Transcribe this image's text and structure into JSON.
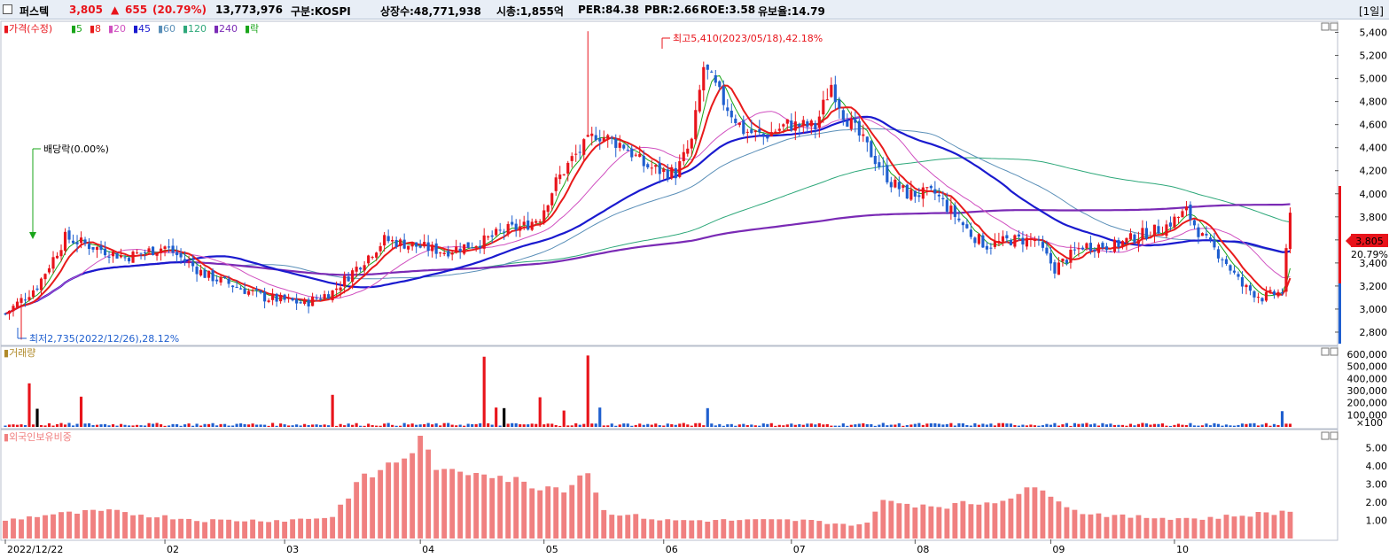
{
  "header": {
    "name": "퍼스텍",
    "price": "3,805",
    "change_arrow": "▲",
    "change": "655",
    "change_pct": "(20.79%)",
    "volume": "13,773,976",
    "market": "구분:KOSPI",
    "listed": "상장수:48,771,938",
    "mktcap": "시총:1,855억",
    "per": "PER:84.38",
    "pbr": "PBR:2.66",
    "roe": "ROE:3.58",
    "float": "유보율:14.79",
    "period": "[1일]"
  },
  "colors": {
    "up": "#e8141b",
    "down": "#1f5fcf",
    "ma5": "#1aa51a",
    "ma8": "#e81b1b",
    "ma20": "#d050c0",
    "ma45": "#1a1acf",
    "ma60": "#5a8fb8",
    "ma120": "#2ea87a",
    "ma240": "#7a2ab5",
    "foreign": "#f08080"
  },
  "price_panel": {
    "legend": [
      "가격(수정)",
      "5",
      "8",
      "20",
      "45",
      "60",
      "120",
      "240",
      "락"
    ],
    "annotations": {
      "high": "최고5,410(2023/05/18),42.18%",
      "low": "최저2,735(2022/12/26),28.12%",
      "dividend": "배당락(0.00%)"
    },
    "current_price_label": "3,805",
    "current_pct_label": "20.79%"
  },
  "volume_panel": {
    "legend": "거래량",
    "unit": "×100"
  },
  "foreign_panel": {
    "legend": "외국인보유비중"
  },
  "chart_data": [
    {
      "type": "candlestick",
      "title": "가격(수정)",
      "y_ticks": [
        "5,400",
        "5,200",
        "5,000",
        "4,800",
        "4,600",
        "4,400",
        "4,200",
        "4,000",
        "3,800",
        "3,600",
        "3,400",
        "3,200",
        "3,000",
        "2,800"
      ],
      "ylim": [
        2700,
        5450
      ],
      "x_ticks": [
        "2022/12/22",
        "02",
        "03",
        "04",
        "05",
        "06",
        "07",
        "08",
        "09",
        "10"
      ],
      "series": [
        {
          "name": "가격(수정)",
          "close_points": [
            [
              0,
              2960
            ],
            [
              8,
              3200
            ],
            [
              15,
              3620
            ],
            [
              30,
              3450
            ],
            [
              40,
              3540
            ],
            [
              50,
              3300
            ],
            [
              65,
              3100
            ],
            [
              75,
              3050
            ],
            [
              82,
              3150
            ],
            [
              95,
              3600
            ],
            [
              110,
              3500
            ],
            [
              120,
              3590
            ],
            [
              125,
              3680
            ],
            [
              130,
              3720
            ],
            [
              134,
              3800
            ],
            [
              138,
              4100
            ],
            [
              142,
              4300
            ],
            [
              148,
              4520
            ],
            [
              155,
              4420
            ],
            [
              160,
              4250
            ],
            [
              164,
              4200
            ],
            [
              168,
              4180
            ],
            [
              172,
              4450
            ],
            [
              175,
              5100
            ],
            [
              180,
              4800
            ],
            [
              185,
              4550
            ],
            [
              190,
              4500
            ],
            [
              196,
              4600
            ],
            [
              203,
              4580
            ],
            [
              207,
              4950
            ],
            [
              210,
              4700
            ],
            [
              214,
              4500
            ],
            [
              218,
              4300
            ],
            [
              222,
              4100
            ],
            [
              226,
              4000
            ],
            [
              233,
              4000
            ],
            [
              237,
              3850
            ],
            [
              242,
              3650
            ],
            [
              246,
              3550
            ],
            [
              252,
              3600
            ],
            [
              258,
              3600
            ],
            [
              263,
              3350
            ],
            [
              270,
              3550
            ],
            [
              278,
              3550
            ],
            [
              285,
              3650
            ],
            [
              290,
              3700
            ],
            [
              296,
              3850
            ],
            [
              300,
              3620
            ],
            [
              305,
              3450
            ],
            [
              310,
              3200
            ],
            [
              315,
              3100
            ],
            [
              320,
              3150
            ],
            [
              322,
              3805
            ]
          ]
        }
      ]
    },
    {
      "type": "bar",
      "title": "거래량",
      "y_ticks": [
        "600,000",
        "500,000",
        "400,000",
        "300,000",
        "200,000",
        "100,000"
      ],
      "ylim": [
        0,
        600000
      ]
    },
    {
      "type": "bar",
      "title": "외국인보유비중",
      "y_ticks": [
        "5.00",
        "4.00",
        "3.00",
        "2.00",
        "1.00"
      ],
      "ylim": [
        0,
        5.5
      ]
    }
  ]
}
